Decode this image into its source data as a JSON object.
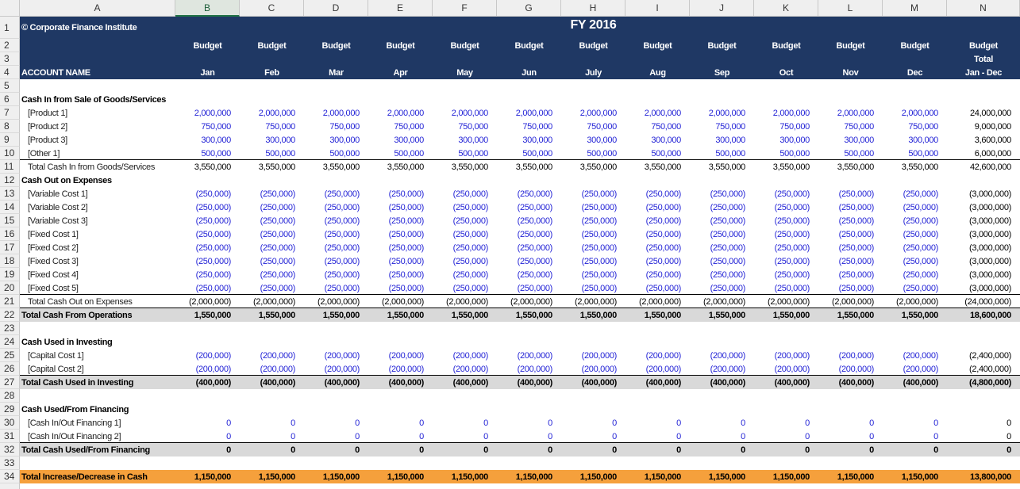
{
  "column_letters": [
    "A",
    "B",
    "C",
    "D",
    "E",
    "F",
    "G",
    "H",
    "I",
    "J",
    "K",
    "L",
    "M",
    "N"
  ],
  "rows": [
    {
      "number": 1,
      "cells": {
        "A": "© Corporate Finance Institute",
        "H": "FY 2016"
      }
    },
    {
      "number": 2,
      "cells": {
        "B": "Budget",
        "C": "Budget",
        "D": "Budget",
        "E": "Budget",
        "F": "Budget",
        "G": "Budget",
        "H": "Budget",
        "I": "Budget",
        "J": "Budget",
        "K": "Budget",
        "L": "Budget",
        "M": "Budget",
        "N": "Budget"
      }
    },
    {
      "number": 3,
      "cells": {
        "N": "Total"
      }
    },
    {
      "number": 4,
      "cells": {
        "A": "ACCOUNT NAME",
        "B": "Jan",
        "C": "Feb",
        "D": "Mar",
        "E": "Apr",
        "F": "May",
        "G": "Jun",
        "H": "July",
        "I": "Aug",
        "J": "Sep",
        "K": "Oct",
        "L": "Nov",
        "M": "Dec",
        "N": "Jan - Dec"
      }
    },
    {
      "number": 5,
      "cells": {}
    },
    {
      "number": 6,
      "cells": {
        "A": "Cash In from Sale of Goods/Services"
      }
    },
    {
      "number": 7,
      "cells": {
        "A": "[Product 1]",
        "B": "2,000,000",
        "C": "2,000,000",
        "D": "2,000,000",
        "E": "2,000,000",
        "F": "2,000,000",
        "G": "2,000,000",
        "H": "2,000,000",
        "I": "2,000,000",
        "J": "2,000,000",
        "K": "2,000,000",
        "L": "2,000,000",
        "M": "2,000,000",
        "N": "24,000,000"
      }
    },
    {
      "number": 8,
      "cells": {
        "A": "[Product 2]",
        "B": "750,000",
        "C": "750,000",
        "D": "750,000",
        "E": "750,000",
        "F": "750,000",
        "G": "750,000",
        "H": "750,000",
        "I": "750,000",
        "J": "750,000",
        "K": "750,000",
        "L": "750,000",
        "M": "750,000",
        "N": "9,000,000"
      }
    },
    {
      "number": 9,
      "cells": {
        "A": "[Product 3]",
        "B": "300,000",
        "C": "300,000",
        "D": "300,000",
        "E": "300,000",
        "F": "300,000",
        "G": "300,000",
        "H": "300,000",
        "I": "300,000",
        "J": "300,000",
        "K": "300,000",
        "L": "300,000",
        "M": "300,000",
        "N": "3,600,000"
      }
    },
    {
      "number": 10,
      "cells": {
        "A": "[Other 1]",
        "B": "500,000",
        "C": "500,000",
        "D": "500,000",
        "E": "500,000",
        "F": "500,000",
        "G": "500,000",
        "H": "500,000",
        "I": "500,000",
        "J": "500,000",
        "K": "500,000",
        "L": "500,000",
        "M": "500,000",
        "N": "6,000,000"
      }
    },
    {
      "number": 11,
      "cells": {
        "A": "Total Cash In from Goods/Services",
        "B": "3,550,000",
        "C": "3,550,000",
        "D": "3,550,000",
        "E": "3,550,000",
        "F": "3,550,000",
        "G": "3,550,000",
        "H": "3,550,000",
        "I": "3,550,000",
        "J": "3,550,000",
        "K": "3,550,000",
        "L": "3,550,000",
        "M": "3,550,000",
        "N": "42,600,000"
      }
    },
    {
      "number": 12,
      "cells": {
        "A": "Cash Out on Expenses"
      }
    },
    {
      "number": 13,
      "cells": {
        "A": "[Variable Cost 1]",
        "B": "(250,000)",
        "C": "(250,000)",
        "D": "(250,000)",
        "E": "(250,000)",
        "F": "(250,000)",
        "G": "(250,000)",
        "H": "(250,000)",
        "I": "(250,000)",
        "J": "(250,000)",
        "K": "(250,000)",
        "L": "(250,000)",
        "M": "(250,000)",
        "N": "(3,000,000)"
      }
    },
    {
      "number": 14,
      "cells": {
        "A": "[Variable Cost 2]",
        "B": "(250,000)",
        "C": "(250,000)",
        "D": "(250,000)",
        "E": "(250,000)",
        "F": "(250,000)",
        "G": "(250,000)",
        "H": "(250,000)",
        "I": "(250,000)",
        "J": "(250,000)",
        "K": "(250,000)",
        "L": "(250,000)",
        "M": "(250,000)",
        "N": "(3,000,000)"
      }
    },
    {
      "number": 15,
      "cells": {
        "A": "[Variable Cost 3]",
        "B": "(250,000)",
        "C": "(250,000)",
        "D": "(250,000)",
        "E": "(250,000)",
        "F": "(250,000)",
        "G": "(250,000)",
        "H": "(250,000)",
        "I": "(250,000)",
        "J": "(250,000)",
        "K": "(250,000)",
        "L": "(250,000)",
        "M": "(250,000)",
        "N": "(3,000,000)"
      }
    },
    {
      "number": 16,
      "cells": {
        "A": "[Fixed Cost 1]",
        "B": "(250,000)",
        "C": "(250,000)",
        "D": "(250,000)",
        "E": "(250,000)",
        "F": "(250,000)",
        "G": "(250,000)",
        "H": "(250,000)",
        "I": "(250,000)",
        "J": "(250,000)",
        "K": "(250,000)",
        "L": "(250,000)",
        "M": "(250,000)",
        "N": "(3,000,000)"
      }
    },
    {
      "number": 17,
      "cells": {
        "A": "[Fixed Cost 2]",
        "B": "(250,000)",
        "C": "(250,000)",
        "D": "(250,000)",
        "E": "(250,000)",
        "F": "(250,000)",
        "G": "(250,000)",
        "H": "(250,000)",
        "I": "(250,000)",
        "J": "(250,000)",
        "K": "(250,000)",
        "L": "(250,000)",
        "M": "(250,000)",
        "N": "(3,000,000)"
      }
    },
    {
      "number": 18,
      "cells": {
        "A": "[Fixed Cost 3]",
        "B": "(250,000)",
        "C": "(250,000)",
        "D": "(250,000)",
        "E": "(250,000)",
        "F": "(250,000)",
        "G": "(250,000)",
        "H": "(250,000)",
        "I": "(250,000)",
        "J": "(250,000)",
        "K": "(250,000)",
        "L": "(250,000)",
        "M": "(250,000)",
        "N": "(3,000,000)"
      }
    },
    {
      "number": 19,
      "cells": {
        "A": "[Fixed Cost 4]",
        "B": "(250,000)",
        "C": "(250,000)",
        "D": "(250,000)",
        "E": "(250,000)",
        "F": "(250,000)",
        "G": "(250,000)",
        "H": "(250,000)",
        "I": "(250,000)",
        "J": "(250,000)",
        "K": "(250,000)",
        "L": "(250,000)",
        "M": "(250,000)",
        "N": "(3,000,000)"
      }
    },
    {
      "number": 20,
      "cells": {
        "A": "[Fixed Cost 5]",
        "B": "(250,000)",
        "C": "(250,000)",
        "D": "(250,000)",
        "E": "(250,000)",
        "F": "(250,000)",
        "G": "(250,000)",
        "H": "(250,000)",
        "I": "(250,000)",
        "J": "(250,000)",
        "K": "(250,000)",
        "L": "(250,000)",
        "M": "(250,000)",
        "N": "(3,000,000)"
      }
    },
    {
      "number": 21,
      "cells": {
        "A": "Total Cash Out on Expenses",
        "B": "(2,000,000)",
        "C": "(2,000,000)",
        "D": "(2,000,000)",
        "E": "(2,000,000)",
        "F": "(2,000,000)",
        "G": "(2,000,000)",
        "H": "(2,000,000)",
        "I": "(2,000,000)",
        "J": "(2,000,000)",
        "K": "(2,000,000)",
        "L": "(2,000,000)",
        "M": "(2,000,000)",
        "N": "(24,000,000)"
      }
    },
    {
      "number": 22,
      "cells": {
        "A": "Total Cash From Operations",
        "B": "1,550,000",
        "C": "1,550,000",
        "D": "1,550,000",
        "E": "1,550,000",
        "F": "1,550,000",
        "G": "1,550,000",
        "H": "1,550,000",
        "I": "1,550,000",
        "J": "1,550,000",
        "K": "1,550,000",
        "L": "1,550,000",
        "M": "1,550,000",
        "N": "18,600,000"
      }
    },
    {
      "number": 23,
      "cells": {}
    },
    {
      "number": 24,
      "cells": {
        "A": "Cash Used in Investing"
      }
    },
    {
      "number": 25,
      "cells": {
        "A": "[Capital Cost 1]",
        "B": "(200,000)",
        "C": "(200,000)",
        "D": "(200,000)",
        "E": "(200,000)",
        "F": "(200,000)",
        "G": "(200,000)",
        "H": "(200,000)",
        "I": "(200,000)",
        "J": "(200,000)",
        "K": "(200,000)",
        "L": "(200,000)",
        "M": "(200,000)",
        "N": "(2,400,000)"
      }
    },
    {
      "number": 26,
      "cells": {
        "A": "[Capital Cost 2]",
        "B": "(200,000)",
        "C": "(200,000)",
        "D": "(200,000)",
        "E": "(200,000)",
        "F": "(200,000)",
        "G": "(200,000)",
        "H": "(200,000)",
        "I": "(200,000)",
        "J": "(200,000)",
        "K": "(200,000)",
        "L": "(200,000)",
        "M": "(200,000)",
        "N": "(2,400,000)"
      }
    },
    {
      "number": 27,
      "cells": {
        "A": "Total Cash Used in Investing",
        "B": "(400,000)",
        "C": "(400,000)",
        "D": "(400,000)",
        "E": "(400,000)",
        "F": "(400,000)",
        "G": "(400,000)",
        "H": "(400,000)",
        "I": "(400,000)",
        "J": "(400,000)",
        "K": "(400,000)",
        "L": "(400,000)",
        "M": "(400,000)",
        "N": "(4,800,000)"
      }
    },
    {
      "number": 28,
      "cells": {}
    },
    {
      "number": 29,
      "cells": {
        "A": "Cash Used/From Financing"
      }
    },
    {
      "number": 30,
      "cells": {
        "A": "[Cash In/Out Financing 1]",
        "B": "0",
        "C": "0",
        "D": "0",
        "E": "0",
        "F": "0",
        "G": "0",
        "H": "0",
        "I": "0",
        "J": "0",
        "K": "0",
        "L": "0",
        "M": "0",
        "N": "0"
      }
    },
    {
      "number": 31,
      "cells": {
        "A": "[Cash In/Out Financing 2]",
        "B": "0",
        "C": "0",
        "D": "0",
        "E": "0",
        "F": "0",
        "G": "0",
        "H": "0",
        "I": "0",
        "J": "0",
        "K": "0",
        "L": "0",
        "M": "0",
        "N": "0"
      }
    },
    {
      "number": 32,
      "cells": {
        "A": "Total Cash Used/From Financing",
        "B": "0",
        "C": "0",
        "D": "0",
        "E": "0",
        "F": "0",
        "G": "0",
        "H": "0",
        "I": "0",
        "J": "0",
        "K": "0",
        "L": "0",
        "M": "0",
        "N": "0"
      }
    },
    {
      "number": 33,
      "cells": {}
    },
    {
      "number": 34,
      "cells": {
        "A": "Total Increase/Decrease in Cash",
        "B": "1,150,000",
        "C": "1,150,000",
        "D": "1,150,000",
        "E": "1,150,000",
        "F": "1,150,000",
        "G": "1,150,000",
        "H": "1,150,000",
        "I": "1,150,000",
        "J": "1,150,000",
        "K": "1,150,000",
        "L": "1,150,000",
        "M": "1,150,000",
        "N": "13,800,000"
      }
    }
  ]
}
